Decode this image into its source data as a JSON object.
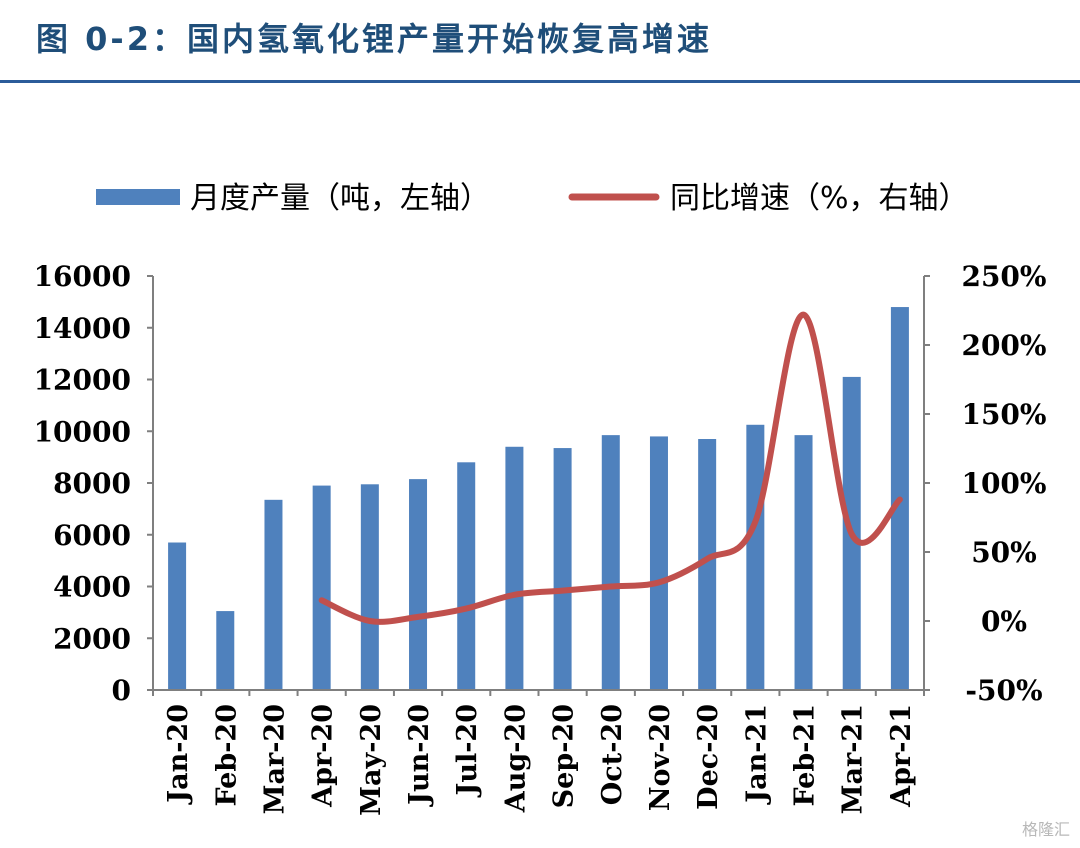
{
  "title": "图 0-2：国内氢氧化锂产量开始恢复高增速",
  "watermark": "格隆汇",
  "colors": {
    "bar": "#4f81bd",
    "line": "#c0504d",
    "axis": "#7f7f7f",
    "title": "#1f4e79"
  },
  "chart_data": {
    "type": "bar+line",
    "categories": [
      "Jan-20",
      "Feb-20",
      "Mar-20",
      "Apr-20",
      "May-20",
      "Jun-20",
      "Jul-20",
      "Aug-20",
      "Sep-20",
      "Oct-20",
      "Nov-20",
      "Dec-20",
      "Jan-21",
      "Feb-21",
      "Mar-21",
      "Apr-21"
    ],
    "series": [
      {
        "name": "月度产量（吨，左轴）",
        "type": "bar",
        "axis": "left",
        "values": [
          5700,
          3050,
          7350,
          7900,
          7950,
          8150,
          8800,
          9400,
          9350,
          9850,
          9800,
          9700,
          10250,
          9850,
          12100,
          14800
        ]
      },
      {
        "name": "同比增速（%，右轴）",
        "type": "line",
        "axis": "right",
        "values": [
          null,
          null,
          null,
          15,
          0,
          3,
          9,
          19,
          22,
          25,
          28,
          45,
          72,
          222,
          63,
          88
        ]
      }
    ],
    "left_axis": {
      "min": 0,
      "max": 16000,
      "ticks": [
        "0",
        "2000",
        "4000",
        "6000",
        "8000",
        "10000",
        "12000",
        "14000",
        "16000"
      ]
    },
    "right_axis": {
      "min": -50,
      "max": 250,
      "ticks": [
        "-50%",
        "0%",
        "50%",
        "100%",
        "150%",
        "200%",
        "250%"
      ]
    },
    "legend_position": "top",
    "grid": false
  }
}
